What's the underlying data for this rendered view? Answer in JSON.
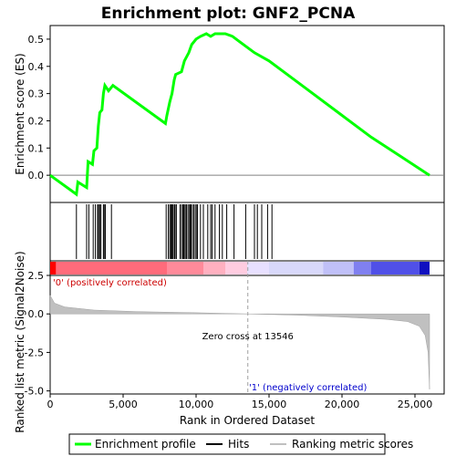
{
  "chart_data": {
    "type": "line",
    "title": "Enrichment plot: GNF2_PCNA",
    "x_label": "Rank in Ordered Dataset",
    "x_ticks": [
      "0",
      "5,000",
      "10,000",
      "15,000",
      "20,000",
      "25,000"
    ],
    "x_range": [
      0,
      27000
    ],
    "panels": {
      "es": {
        "y_label": "Enrichment score (ES)",
        "y_ticks": [
          "0.0",
          "0.1",
          "0.2",
          "0.3",
          "0.4",
          "0.5"
        ],
        "y_range": [
          -0.1,
          0.55
        ],
        "series": {
          "name": "Enrichment profile",
          "color": "#00ff00",
          "points": [
            [
              0,
              0.0
            ],
            [
              1800,
              -0.07
            ],
            [
              1900,
              -0.025
            ],
            [
              2500,
              -0.045
            ],
            [
              2600,
              0.05
            ],
            [
              2900,
              0.04
            ],
            [
              3000,
              0.09
            ],
            [
              3200,
              0.1
            ],
            [
              3300,
              0.18
            ],
            [
              3400,
              0.23
            ],
            [
              3550,
              0.24
            ],
            [
              3650,
              0.3
            ],
            [
              3750,
              0.33
            ],
            [
              4000,
              0.31
            ],
            [
              4300,
              0.33
            ],
            [
              7900,
              0.19
            ],
            [
              8000,
              0.22
            ],
            [
              8200,
              0.27
            ],
            [
              8350,
              0.3
            ],
            [
              8500,
              0.35
            ],
            [
              8600,
              0.37
            ],
            [
              9000,
              0.38
            ],
            [
              9200,
              0.42
            ],
            [
              9500,
              0.45
            ],
            [
              9700,
              0.48
            ],
            [
              10000,
              0.5
            ],
            [
              10300,
              0.51
            ],
            [
              10700,
              0.52
            ],
            [
              11000,
              0.51
            ],
            [
              11300,
              0.52
            ],
            [
              11500,
              0.52
            ],
            [
              12000,
              0.52
            ],
            [
              12500,
              0.51
            ],
            [
              13000,
              0.49
            ],
            [
              14000,
              0.45
            ],
            [
              15000,
              0.42
            ],
            [
              16000,
              0.38
            ],
            [
              18000,
              0.3
            ],
            [
              20000,
              0.22
            ],
            [
              22000,
              0.14
            ],
            [
              24000,
              0.07
            ],
            [
              26000,
              0.0
            ]
          ]
        }
      },
      "hits": {
        "name": "Hits",
        "positions": [
          1800,
          2500,
          2650,
          2950,
          3100,
          3250,
          3320,
          3400,
          3480,
          3650,
          3700,
          3780,
          4200,
          7950,
          8100,
          8200,
          8280,
          8350,
          8400,
          8500,
          8560,
          8650,
          8900,
          9000,
          9100,
          9150,
          9200,
          9300,
          9350,
          9450,
          9550,
          9600,
          9650,
          9750,
          9850,
          9950,
          10050,
          10100,
          10300,
          10500,
          10800,
          11000,
          11100,
          11300,
          11600,
          11800,
          12100,
          12600,
          13400,
          14000,
          14200,
          14500,
          14900,
          15200
        ]
      },
      "heatmap": {
        "segments": [
          {
            "from": 0,
            "to": 400,
            "color": "#ff0000"
          },
          {
            "from": 400,
            "to": 8000,
            "color": "#ff6b7b"
          },
          {
            "from": 8000,
            "to": 10500,
            "color": "#ff8a9a"
          },
          {
            "from": 10500,
            "to": 12000,
            "color": "#ffb0c0"
          },
          {
            "from": 12000,
            "to": 13500,
            "color": "#ffcce0"
          },
          {
            "from": 13500,
            "to": 15000,
            "color": "#e8e0ff"
          },
          {
            "from": 15000,
            "to": 18700,
            "color": "#d8d8fa"
          },
          {
            "from": 18700,
            "to": 20800,
            "color": "#c0c0f8"
          },
          {
            "from": 20800,
            "to": 22000,
            "color": "#8080f0"
          },
          {
            "from": 22000,
            "to": 25300,
            "color": "#5050e8"
          },
          {
            "from": 25300,
            "to": 26000,
            "color": "#1010c0"
          }
        ]
      },
      "metric": {
        "y_label": "Ranked list metric (Signal2Noise)",
        "y_ticks": [
          "2.5",
          "0.0",
          "-2.5",
          "-5.0"
        ],
        "y_range": [
          -5.2,
          2.5
        ],
        "series": {
          "name": "Ranking metric scores",
          "color": "#c0c0c0",
          "points": [
            [
              0,
              1.2
            ],
            [
              300,
              0.7
            ],
            [
              1000,
              0.45
            ],
            [
              3000,
              0.25
            ],
            [
              6000,
              0.15
            ],
            [
              10000,
              0.08
            ],
            [
              13546,
              0.0
            ],
            [
              17000,
              -0.08
            ],
            [
              20000,
              -0.2
            ],
            [
              23000,
              -0.35
            ],
            [
              24500,
              -0.5
            ],
            [
              25300,
              -0.8
            ],
            [
              25700,
              -1.4
            ],
            [
              25900,
              -2.5
            ],
            [
              26000,
              -4.9
            ]
          ]
        },
        "zero_cross_label": "Zero cross at 13546",
        "zero_cross_rank": 13546,
        "pos_label": "'0' (positively correlated)",
        "neg_label": "'1' (negatively correlated)"
      }
    },
    "legend": {
      "placement": "bottom",
      "entries": [
        {
          "label": "Enrichment profile",
          "color": "#00ff00"
        },
        {
          "label": "Hits",
          "color": "#000000"
        },
        {
          "label": "Ranking metric scores",
          "color": "#c0c0c0"
        }
      ]
    }
  }
}
